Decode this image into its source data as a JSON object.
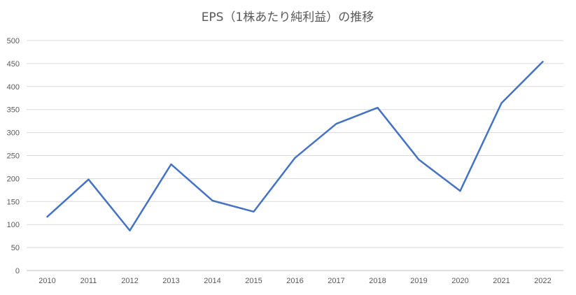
{
  "chart_data": {
    "type": "line",
    "title": "EPS（1株あたり純利益）の推移",
    "xlabel": "",
    "ylabel": "",
    "categories": [
      "2010",
      "2011",
      "2012",
      "2013",
      "2014",
      "2015",
      "2016",
      "2017",
      "2018",
      "2019",
      "2020",
      "2021",
      "2022"
    ],
    "series": [
      {
        "values": [
          117,
          198,
          87,
          231,
          152,
          128,
          245,
          319,
          354,
          241,
          173,
          364,
          454
        ]
      }
    ],
    "ylim": [
      0,
      500
    ],
    "yticks": [
      0,
      50,
      100,
      150,
      200,
      250,
      300,
      350,
      400,
      450,
      500
    ],
    "grid": true,
    "legend": "none",
    "colors": {
      "series": "#4472c4",
      "grid": "#d9d9d9",
      "text": "#595959"
    }
  }
}
